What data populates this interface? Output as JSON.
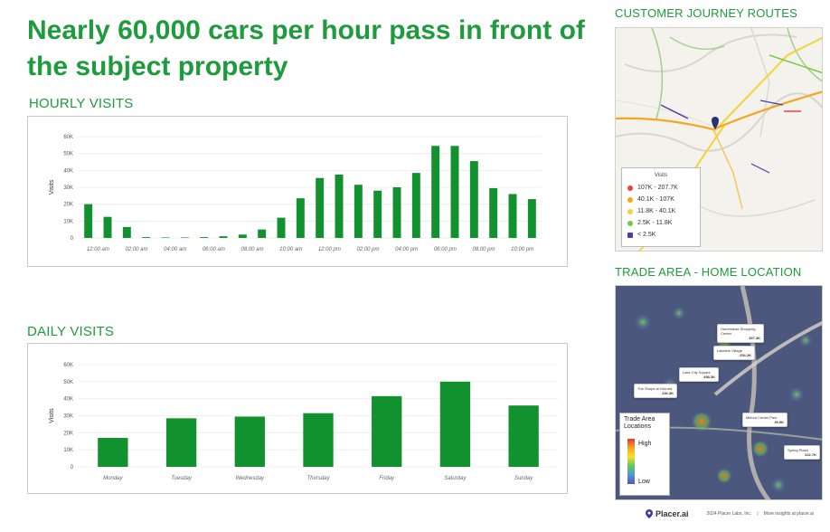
{
  "headline": "Nearly 60,000 cars per hour pass in front of the subject property",
  "sections": {
    "hourly_label": "HOURLY VISITS",
    "daily_label": "DAILY VISITS",
    "routes_label": "CUSTOMER JOURNEY ROUTES",
    "trade_label": "TRADE AREA - HOME LOCATION"
  },
  "chart_data": [
    {
      "type": "bar",
      "title": "HOURLY VISITS",
      "ylabel": "Visits",
      "ylim": [
        0,
        60000
      ],
      "yticks": [
        "0",
        "10K",
        "20K",
        "30K",
        "40K",
        "50K",
        "60K"
      ],
      "xtick_labels": [
        "12:00 am",
        "02:00 am",
        "04:00 am",
        "06:00 am",
        "08:00 am",
        "10:00 am",
        "12:00 pm",
        "02:00 pm",
        "04:00 pm",
        "06:00 pm",
        "08:00 pm",
        "10:00 pm"
      ],
      "categories": [
        "12am",
        "1am",
        "2am",
        "3am",
        "4am",
        "5am",
        "6am",
        "7am",
        "8am",
        "9am",
        "10am",
        "11am",
        "12pm",
        "1pm",
        "2pm",
        "3pm",
        "4pm",
        "5pm",
        "6pm",
        "7pm",
        "8pm",
        "9pm",
        "10pm",
        "11pm"
      ],
      "values": [
        20000,
        12500,
        6500,
        500,
        300,
        300,
        500,
        1000,
        2000,
        5000,
        12000,
        23500,
        35500,
        37500,
        31500,
        28000,
        30000,
        38500,
        54500,
        54500,
        45500,
        29500,
        26000,
        23000
      ],
      "color": "#12912f",
      "grid": true
    },
    {
      "type": "bar",
      "title": "DAILY VISITS",
      "ylabel": "Visits",
      "ylim": [
        0,
        60000
      ],
      "yticks": [
        "0",
        "10K",
        "20K",
        "30K",
        "40K",
        "50K",
        "60K"
      ],
      "categories": [
        "Monday",
        "Tuesday",
        "Wednesday",
        "Thursday",
        "Friday",
        "Saturday",
        "Sunday"
      ],
      "values": [
        17000,
        28500,
        29500,
        31500,
        41500,
        50000,
        36000
      ],
      "color": "#12912f",
      "grid": true
    }
  ],
  "routes_legend": {
    "title": "Visits",
    "items": [
      {
        "label": "107K - 207.7K",
        "color": "#e8453c"
      },
      {
        "label": "40.1K - 107K",
        "color": "#f5a623"
      },
      {
        "label": "11.8K - 40.1K",
        "color": "#f2d43a"
      },
      {
        "label": "2.5K - 11.8K",
        "color": "#7ac943"
      },
      {
        "label": "< 2.5K",
        "color": "#4b3fa8"
      }
    ]
  },
  "trade_legend": {
    "title": "Trade Area Locations",
    "high": "High",
    "low": "Low"
  },
  "poi_cards": [
    {
      "name": "Homestead Shopping Center",
      "value": "357.3K"
    },
    {
      "name": "Lakeline Village",
      "value": "254.2K"
    },
    {
      "name": "Lake City Square",
      "value": "498.3K"
    },
    {
      "name": "The Shops at Victoria",
      "value": "246.3K"
    },
    {
      "name": "Milford Center Park",
      "value": "39.9K"
    },
    {
      "name": "Spring Plaza",
      "value": "222.7K"
    }
  ],
  "footer": {
    "brand": "Placer.ai",
    "copyright": "2024 Placer Labs, Inc.",
    "more": "More insights at placer.ai"
  },
  "colors": {
    "accent": "#1e9b3c",
    "bar": "#12912f"
  }
}
